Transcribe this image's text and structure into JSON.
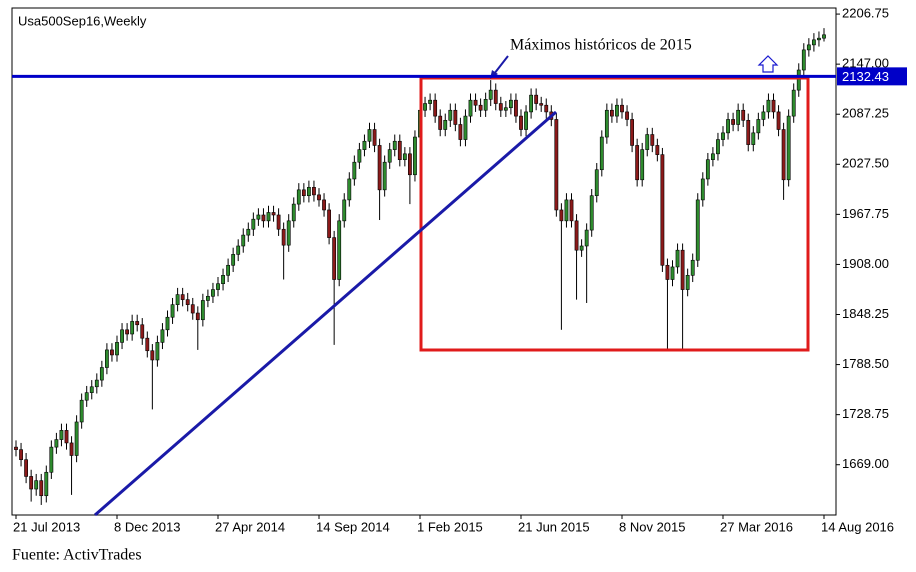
{
  "chart_data": {
    "type": "candlestick",
    "title": "Usa500Sep16,Weekly",
    "annotation": "Máximos históricos de 2015",
    "source": "Fuente: ActivTrades",
    "price_line": {
      "value": 2132.43,
      "color": "#0000c8"
    },
    "up_color": "#2e8b2e",
    "down_color": "#8b1a1a",
    "ylim": [
      1609,
      2214
    ],
    "yticks": [
      2206.75,
      {
        "value": 2147,
        "label": "2147.00"
      },
      2087.25,
      {
        "value": 2027.5,
        "label": "2027.50"
      },
      1967.75,
      {
        "value": 1908,
        "label": "1908.00"
      },
      1848.25,
      {
        "value": 1788.5,
        "label": "1788.50"
      },
      1728.75,
      {
        "value": 1669,
        "label": "1669.00"
      }
    ],
    "categories": [
      "21 Jul 2013",
      null,
      null,
      null,
      null,
      null,
      null,
      null,
      null,
      null,
      null,
      null,
      null,
      null,
      null,
      null,
      null,
      null,
      null,
      null,
      "8 Dec 2013",
      null,
      null,
      null,
      null,
      null,
      null,
      null,
      null,
      null,
      null,
      null,
      null,
      null,
      null,
      null,
      null,
      null,
      null,
      null,
      "27 Apr 2014",
      null,
      null,
      null,
      null,
      null,
      null,
      null,
      null,
      null,
      null,
      null,
      null,
      null,
      null,
      null,
      null,
      null,
      null,
      null,
      "14 Sep 2014",
      null,
      null,
      null,
      null,
      null,
      null,
      null,
      null,
      null,
      null,
      null,
      null,
      null,
      null,
      null,
      null,
      null,
      null,
      null,
      "1 Feb 2015",
      null,
      null,
      null,
      null,
      null,
      null,
      null,
      null,
      null,
      null,
      null,
      null,
      null,
      null,
      null,
      null,
      null,
      null,
      null,
      "21 Jun 2015",
      null,
      null,
      null,
      null,
      null,
      null,
      null,
      null,
      null,
      null,
      null,
      null,
      null,
      null,
      null,
      null,
      null,
      null,
      null,
      "8 Nov 2015",
      null,
      null,
      null,
      null,
      null,
      null,
      null,
      null,
      null,
      null,
      null,
      null,
      null,
      null,
      null,
      null,
      null,
      null,
      null,
      "27 Mar 2016",
      null,
      null,
      null,
      null,
      null,
      null,
      null,
      null,
      null,
      null,
      null,
      null,
      null,
      null,
      null,
      null,
      null,
      null,
      null,
      "14 Aug 2016"
    ],
    "open": [
      1690,
      1687,
      1675,
      1655,
      1640,
      1650,
      1632,
      1660,
      1690,
      1699,
      1710,
      1695,
      1680,
      1720,
      1746,
      1755,
      1762,
      1770,
      1785,
      1806,
      1800,
      1815,
      1830,
      1825,
      1840,
      1836,
      1820,
      1805,
      1794,
      1815,
      1830,
      1845,
      1860,
      1872,
      1866,
      1860,
      1850,
      1842,
      1865,
      1870,
      1878,
      1885,
      1895,
      1907,
      1920,
      1930,
      1943,
      1950,
      1962,
      1967,
      1960,
      1970,
      1967,
      1950,
      1931,
      1960,
      1980,
      1997,
      1990,
      2000,
      1991,
      1985,
      1973,
      1940,
      1890,
      1960,
      1985,
      2010,
      2030,
      2045,
      2055,
      2069,
      2050,
      1997,
      2030,
      2045,
      2055,
      2033,
      2040,
      2015,
      2060,
      2092,
      2100,
      2104,
      2085,
      2069,
      2080,
      2092,
      2075,
      2057,
      2085,
      2104,
      2098,
      2092,
      2105,
      2116,
      2100,
      2092,
      2095,
      2104,
      2085,
      2069,
      2090,
      2110,
      2100,
      2098,
      2090,
      2081,
      1973,
      1960,
      1985,
      1960,
      1925,
      1930,
      1949,
      1990,
      2021,
      2060,
      2092,
      2085,
      2098,
      2090,
      2081,
      2050,
      2009,
      2045,
      2063,
      2050,
      2039,
      1907,
      1890,
      1905,
      1925,
      1878,
      1895,
      1913,
      1985,
      2010,
      2033,
      2040,
      2057,
      2065,
      2081,
      2075,
      2092,
      2080,
      2051,
      2065,
      2081,
      2090,
      2104,
      2090,
      2069,
      2009,
      2085,
      2116,
      2140,
      2164,
      2170,
      2176,
      2178
    ],
    "high": [
      1698,
      1695,
      1683,
      1663,
      1658,
      1658,
      1668,
      1698,
      1707,
      1718,
      1718,
      1703,
      1728,
      1754,
      1763,
      1770,
      1778,
      1793,
      1814,
      1814,
      1823,
      1838,
      1838,
      1848,
      1848,
      1844,
      1828,
      1813,
      1823,
      1838,
      1853,
      1868,
      1880,
      1880,
      1874,
      1868,
      1858,
      1873,
      1878,
      1886,
      1893,
      1903,
      1915,
      1928,
      1938,
      1951,
      1958,
      1970,
      1975,
      1975,
      1978,
      1978,
      1975,
      1958,
      1968,
      1988,
      2005,
      2005,
      2008,
      2008,
      1999,
      1993,
      1981,
      1948,
      1968,
      1993,
      2018,
      2038,
      2053,
      2063,
      2077,
      2077,
      2058,
      2038,
      2053,
      2063,
      2063,
      2048,
      2048,
      2068,
      2100,
      2108,
      2112,
      2112,
      2093,
      2088,
      2100,
      2100,
      2083,
      2093,
      2112,
      2112,
      2106,
      2113,
      2128,
      2124,
      2108,
      2103,
      2112,
      2112,
      2093,
      2098,
      2118,
      2118,
      2108,
      2106,
      2098,
      2089,
      1981,
      1993,
      1993,
      1968,
      1938,
      1957,
      1998,
      2029,
      2068,
      2100,
      2100,
      2106,
      2106,
      2098,
      2089,
      2058,
      2053,
      2071,
      2071,
      2058,
      2047,
      1915,
      1913,
      1933,
      1933,
      1903,
      1921,
      1993,
      2018,
      2041,
      2048,
      2065,
      2073,
      2089,
      2089,
      2100,
      2100,
      2088,
      2073,
      2089,
      2098,
      2112,
      2112,
      2098,
      2077,
      2093,
      2124,
      2148,
      2172,
      2178,
      2184,
      2186,
      2190
    ],
    "low": [
      1679,
      1667,
      1647,
      1625,
      1632,
      1621,
      1624,
      1652,
      1682,
      1691,
      1687,
      1633,
      1672,
      1712,
      1738,
      1747,
      1754,
      1762,
      1777,
      1792,
      1792,
      1807,
      1817,
      1817,
      1828,
      1812,
      1797,
      1735,
      1786,
      1807,
      1822,
      1837,
      1852,
      1858,
      1852,
      1842,
      1806,
      1834,
      1857,
      1862,
      1870,
      1877,
      1887,
      1899,
      1912,
      1922,
      1935,
      1942,
      1954,
      1952,
      1952,
      1959,
      1942,
      1890,
      1923,
      1952,
      1972,
      1982,
      1982,
      1983,
      1977,
      1965,
      1932,
      1812,
      1882,
      1952,
      1977,
      2002,
      2022,
      2037,
      2047,
      2042,
      1961,
      1989,
      2022,
      2037,
      2025,
      2025,
      1980,
      2007,
      2052,
      2084,
      2092,
      2077,
      2061,
      2061,
      2072,
      2067,
      2049,
      2049,
      2077,
      2090,
      2084,
      2084,
      2097,
      2092,
      2084,
      2084,
      2087,
      2077,
      2061,
      2061,
      2082,
      2092,
      2090,
      2082,
      2073,
      1965,
      1830,
      1952,
      1952,
      1866,
      1917,
      1862,
      1941,
      1982,
      2013,
      2052,
      2077,
      2077,
      2082,
      2073,
      2042,
      2001,
      2001,
      2037,
      2042,
      2031,
      1899,
      1806,
      1882,
      1897,
      1806,
      1870,
      1887,
      1905,
      1977,
      2002,
      2025,
      2032,
      2049,
      2057,
      2067,
      2067,
      2072,
      2043,
      2043,
      2057,
      2073,
      2082,
      2082,
      2061,
      1985,
      2001,
      2077,
      2108,
      2132,
      2156,
      2162,
      2168,
      2174
    ],
    "close": [
      1687,
      1675,
      1655,
      1640,
      1650,
      1632,
      1660,
      1690,
      1699,
      1710,
      1695,
      1680,
      1720,
      1746,
      1755,
      1762,
      1770,
      1785,
      1806,
      1800,
      1815,
      1830,
      1825,
      1840,
      1836,
      1820,
      1805,
      1794,
      1815,
      1830,
      1845,
      1860,
      1872,
      1866,
      1860,
      1850,
      1842,
      1865,
      1870,
      1878,
      1885,
      1895,
      1907,
      1920,
      1930,
      1943,
      1950,
      1962,
      1967,
      1960,
      1970,
      1967,
      1950,
      1931,
      1960,
      1980,
      1997,
      1990,
      2000,
      1991,
      1985,
      1973,
      1940,
      1890,
      1960,
      1985,
      2010,
      2030,
      2045,
      2055,
      2069,
      2050,
      1997,
      2030,
      2045,
      2055,
      2033,
      2040,
      2015,
      2060,
      2092,
      2100,
      2104,
      2085,
      2069,
      2080,
      2092,
      2075,
      2057,
      2085,
      2104,
      2098,
      2092,
      2105,
      2116,
      2100,
      2092,
      2095,
      2104,
      2085,
      2069,
      2090,
      2110,
      2100,
      2098,
      2090,
      2081,
      1973,
      1960,
      1985,
      1960,
      1925,
      1930,
      1949,
      1990,
      2021,
      2060,
      2092,
      2085,
      2098,
      2090,
      2081,
      2050,
      2009,
      2045,
      2063,
      2050,
      2039,
      1907,
      1890,
      1905,
      1925,
      1878,
      1895,
      1913,
      1985,
      2010,
      2033,
      2040,
      2057,
      2065,
      2081,
      2075,
      2092,
      2080,
      2051,
      2065,
      2081,
      2090,
      2104,
      2090,
      2069,
      2009,
      2085,
      2116,
      2140,
      2164,
      2170,
      2176,
      2178,
      2182
    ]
  }
}
